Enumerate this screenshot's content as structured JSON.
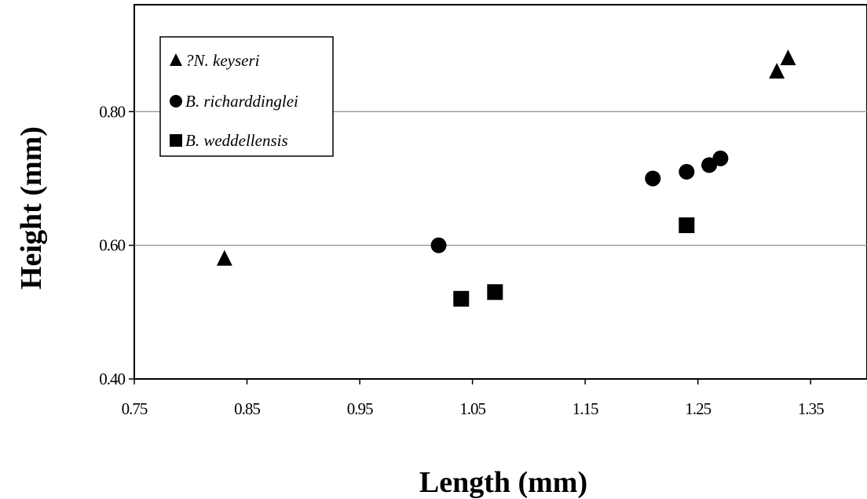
{
  "chart_data": {
    "type": "scatter",
    "title": "",
    "xlabel": "Length (mm)",
    "ylabel": "Height (mm)",
    "xlim": [
      0.75,
      1.4
    ],
    "ylim": [
      0.4,
      0.96
    ],
    "xticks": [
      0.75,
      0.85,
      0.95,
      1.05,
      1.15,
      1.25,
      1.35
    ],
    "xtick_labels": [
      "0.75",
      "0.85",
      "0.95",
      "1.05",
      "1.15",
      "1.25",
      "1.35"
    ],
    "yticks": [
      0.4,
      0.6,
      0.8
    ],
    "ytick_labels": [
      "0.40",
      "0.60",
      "0.80"
    ],
    "grid": "horizontal",
    "legend_position": "top-left",
    "series": [
      {
        "name": "?N. keyseri",
        "marker": "triangle",
        "color": "#000000",
        "points": [
          [
            0.83,
            0.58
          ],
          [
            1.32,
            0.86
          ],
          [
            1.33,
            0.88
          ]
        ]
      },
      {
        "name": "B. richarddinglei",
        "marker": "circle",
        "color": "#000000",
        "points": [
          [
            1.02,
            0.6
          ],
          [
            1.21,
            0.7
          ],
          [
            1.24,
            0.71
          ],
          [
            1.26,
            0.72
          ],
          [
            1.27,
            0.73
          ]
        ]
      },
      {
        "name": "B. weddellensis",
        "marker": "square",
        "color": "#000000",
        "points": [
          [
            1.04,
            0.52
          ],
          [
            1.07,
            0.53
          ],
          [
            1.24,
            0.63
          ]
        ]
      }
    ]
  }
}
